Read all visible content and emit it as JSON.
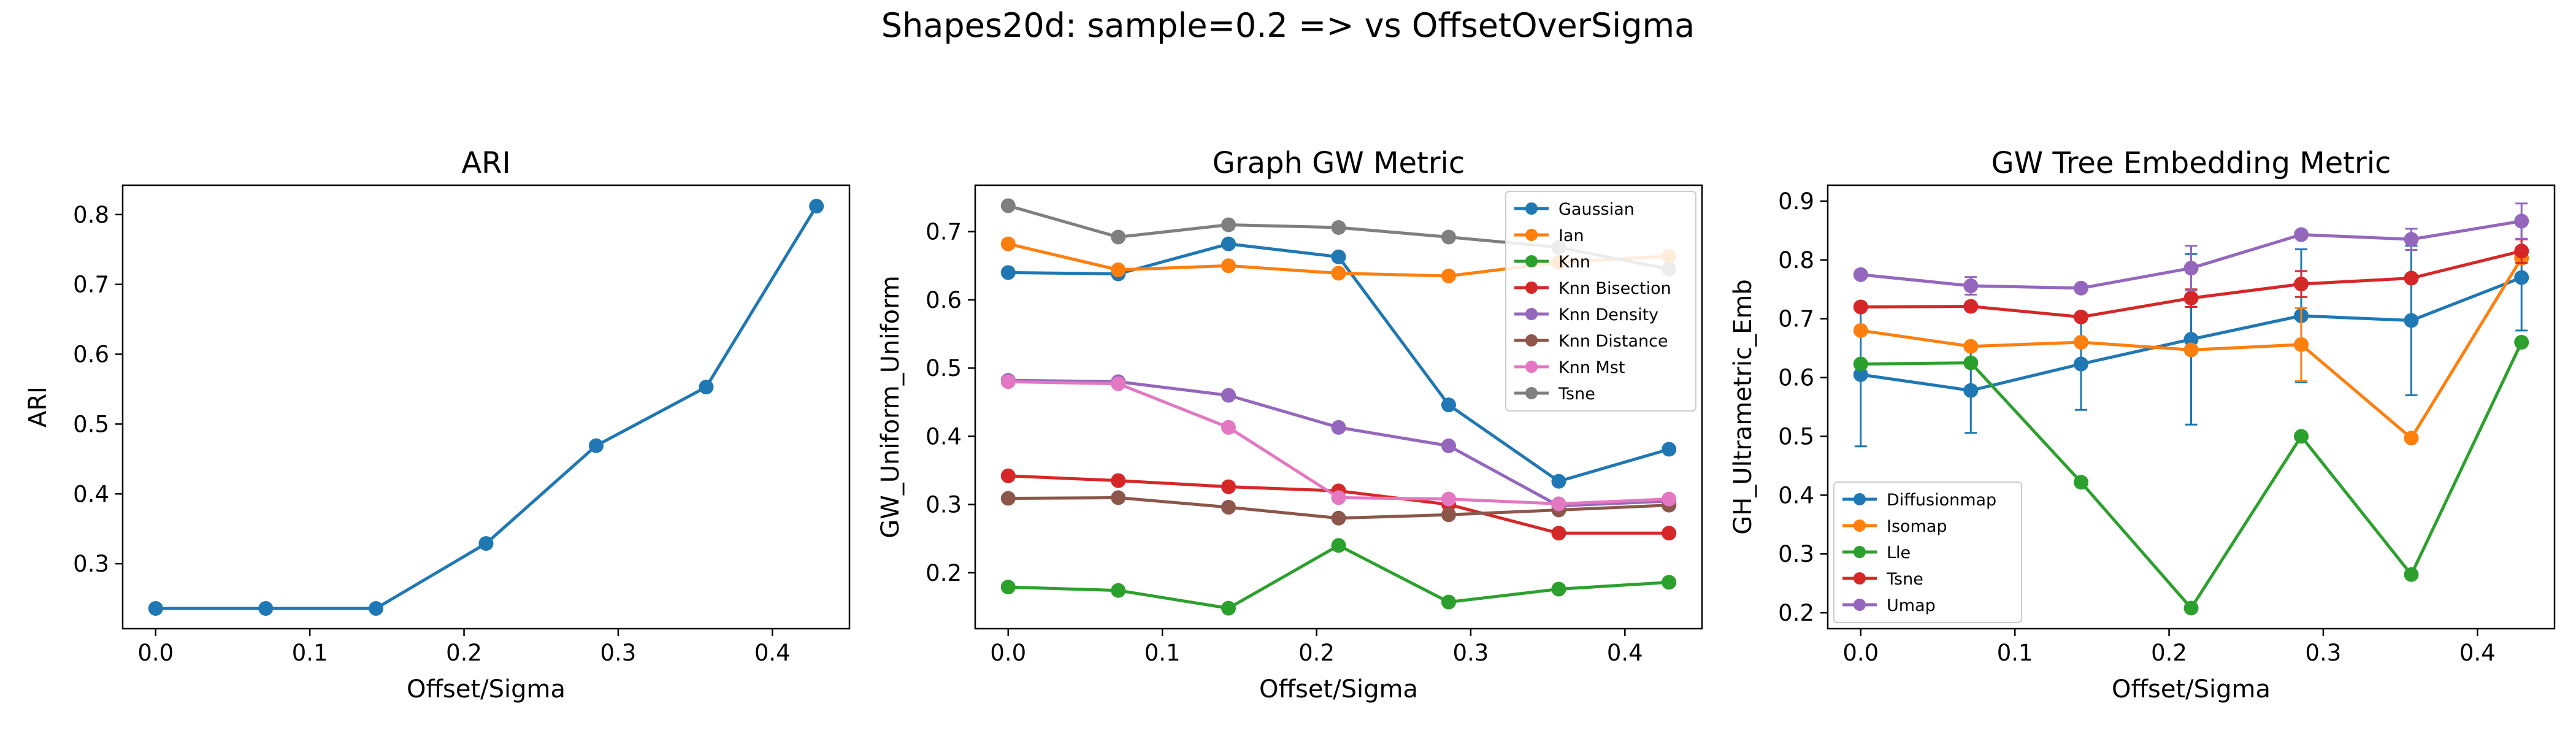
{
  "suptitle": "Shapes20d: sample=0.2 => vs OffsetOverSigma",
  "chart_data": [
    {
      "type": "line",
      "title": "ARI",
      "xlabel": "Offset/Sigma",
      "ylabel": "ARI",
      "x": [
        0.0,
        0.0714,
        0.1429,
        0.2143,
        0.2857,
        0.3571,
        0.4286
      ],
      "xlim": [
        -0.0214,
        0.45
      ],
      "ylim": [
        0.207,
        0.842
      ],
      "xticks": [
        0.0,
        0.1,
        0.2,
        0.3,
        0.4
      ],
      "xtick_labels": [
        "0.0",
        "0.1",
        "0.2",
        "0.3",
        "0.4"
      ],
      "yticks": [
        0.3,
        0.4,
        0.5,
        0.6,
        0.7,
        0.8
      ],
      "ytick_labels": [
        "0.3",
        "0.4",
        "0.5",
        "0.6",
        "0.7",
        "0.8"
      ],
      "legend": "none",
      "series": [
        {
          "name": "",
          "color": "#1f77b4",
          "values": [
            0.236,
            0.236,
            0.236,
            0.329,
            0.469,
            0.553,
            0.812
          ]
        }
      ]
    },
    {
      "type": "line",
      "title": "Graph GW Metric",
      "xlabel": "Offset/Sigma",
      "ylabel": "GW_Uniform_Uniform",
      "x": [
        0.0,
        0.0714,
        0.1429,
        0.2143,
        0.2857,
        0.3571,
        0.4286
      ],
      "xlim": [
        -0.0214,
        0.45
      ],
      "ylim": [
        0.118,
        0.768
      ],
      "xticks": [
        0.0,
        0.1,
        0.2,
        0.3,
        0.4
      ],
      "xtick_labels": [
        "0.0",
        "0.1",
        "0.2",
        "0.3",
        "0.4"
      ],
      "yticks": [
        0.2,
        0.3,
        0.4,
        0.5,
        0.6,
        0.7
      ],
      "ytick_labels": [
        "0.2",
        "0.3",
        "0.4",
        "0.5",
        "0.6",
        "0.7"
      ],
      "legend": "top-right",
      "series": [
        {
          "name": "Gaussian",
          "color": "#1f77b4",
          "values": [
            0.64,
            0.638,
            0.682,
            0.663,
            0.446,
            0.334,
            0.381
          ]
        },
        {
          "name": "Ian",
          "color": "#ff7f0e",
          "values": [
            0.682,
            0.644,
            0.65,
            0.639,
            0.635,
            0.655,
            0.664
          ]
        },
        {
          "name": "Knn",
          "color": "#2ca02c",
          "values": [
            0.179,
            0.174,
            0.148,
            0.24,
            0.157,
            0.176,
            0.186
          ]
        },
        {
          "name": "Knn Bisection",
          "color": "#d62728",
          "values": [
            0.342,
            0.335,
            0.326,
            0.32,
            0.3,
            0.258,
            0.258
          ]
        },
        {
          "name": "Knn Density",
          "color": "#9467bd",
          "values": [
            0.482,
            0.48,
            0.46,
            0.413,
            0.386,
            0.298,
            0.305
          ]
        },
        {
          "name": "Knn Distance",
          "color": "#8c564b",
          "values": [
            0.309,
            0.31,
            0.296,
            0.28,
            0.285,
            0.292,
            0.299
          ]
        },
        {
          "name": "Knn Mst",
          "color": "#e377c2",
          "values": [
            0.48,
            0.477,
            0.413,
            0.31,
            0.308,
            0.301,
            0.308
          ]
        },
        {
          "name": "Tsne",
          "color": "#7f7f7f",
          "values": [
            0.738,
            0.692,
            0.71,
            0.706,
            0.692,
            0.677,
            0.645
          ]
        }
      ]
    },
    {
      "type": "line",
      "title": "GW Tree Embedding Metric",
      "xlabel": "Offset/Sigma",
      "ylabel": "GH_Ultrametric_Emb",
      "x": [
        0.0,
        0.0714,
        0.1429,
        0.2143,
        0.2857,
        0.3571,
        0.4286
      ],
      "xlim": [
        -0.0214,
        0.45
      ],
      "ylim": [
        0.173,
        0.927
      ],
      "xticks": [
        0.0,
        0.1,
        0.2,
        0.3,
        0.4
      ],
      "xtick_labels": [
        "0.0",
        "0.1",
        "0.2",
        "0.3",
        "0.4"
      ],
      "yticks": [
        0.2,
        0.3,
        0.4,
        0.5,
        0.6,
        0.7,
        0.8,
        0.9
      ],
      "ytick_labels": [
        "0.2",
        "0.3",
        "0.4",
        "0.5",
        "0.6",
        "0.7",
        "0.8",
        "0.9"
      ],
      "legend": "lower-left",
      "series": [
        {
          "name": "Diffusionmap",
          "color": "#1f77b4",
          "values": [
            0.605,
            0.578,
            0.623,
            0.665,
            0.705,
            0.697,
            0.77
          ],
          "errors": [
            0.122,
            0.072,
            0.078,
            0.145,
            0.113,
            0.127,
            0.09
          ]
        },
        {
          "name": "Isomap",
          "color": "#ff7f0e",
          "values": [
            0.68,
            0.653,
            0.66,
            0.647,
            0.656,
            0.497,
            0.803
          ],
          "errors": [
            0.0,
            0.0,
            0.0,
            0.0,
            0.062,
            0.0,
            0.0
          ]
        },
        {
          "name": "Lle",
          "color": "#2ca02c",
          "values": [
            0.623,
            0.625,
            0.422,
            0.208,
            0.5,
            0.265,
            0.66
          ],
          "errors": [
            0.0,
            0.0,
            0.0,
            0.0,
            0.0,
            0.0,
            0.0
          ]
        },
        {
          "name": "Tsne",
          "color": "#d62728",
          "values": [
            0.72,
            0.721,
            0.703,
            0.735,
            0.759,
            0.769,
            0.815
          ],
          "errors": [
            0.0,
            0.0,
            0.0,
            0.015,
            0.022,
            0.0,
            0.02
          ]
        },
        {
          "name": "Umap",
          "color": "#9467bd",
          "values": [
            0.775,
            0.756,
            0.752,
            0.786,
            0.843,
            0.835,
            0.866
          ],
          "errors": [
            0.0,
            0.015,
            0.0,
            0.038,
            0.0,
            0.018,
            0.03
          ]
        }
      ]
    }
  ]
}
